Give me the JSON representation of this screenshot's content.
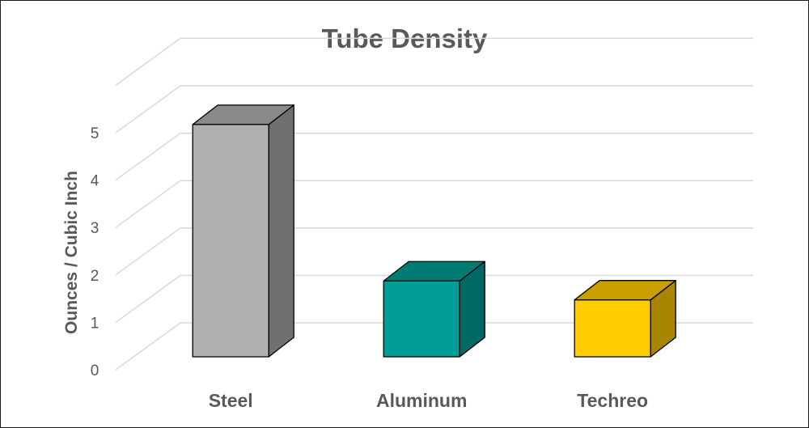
{
  "chart_data": {
    "type": "bar",
    "title": "Tube Density",
    "xlabel": "",
    "ylabel": "Ounces / Cubic Inch",
    "categories": [
      "Steel",
      "Aluminum",
      "Techreo"
    ],
    "values": [
      4.9,
      1.6,
      1.2
    ],
    "ylim": [
      0,
      6
    ],
    "yticks": [
      0,
      1,
      2,
      3,
      4,
      5
    ],
    "grid": true,
    "three_d": true,
    "colors": {
      "bars": [
        {
          "front": "#b0b0b0",
          "top": "#8a8a8a",
          "side": "#707070"
        },
        {
          "front": "#009e96",
          "top": "#007c75",
          "side": "#006964"
        },
        {
          "front": "#ffcc00",
          "top": "#c9a000",
          "side": "#a88600"
        }
      ],
      "grid": "#d9d9d9",
      "text": "#595959"
    }
  }
}
